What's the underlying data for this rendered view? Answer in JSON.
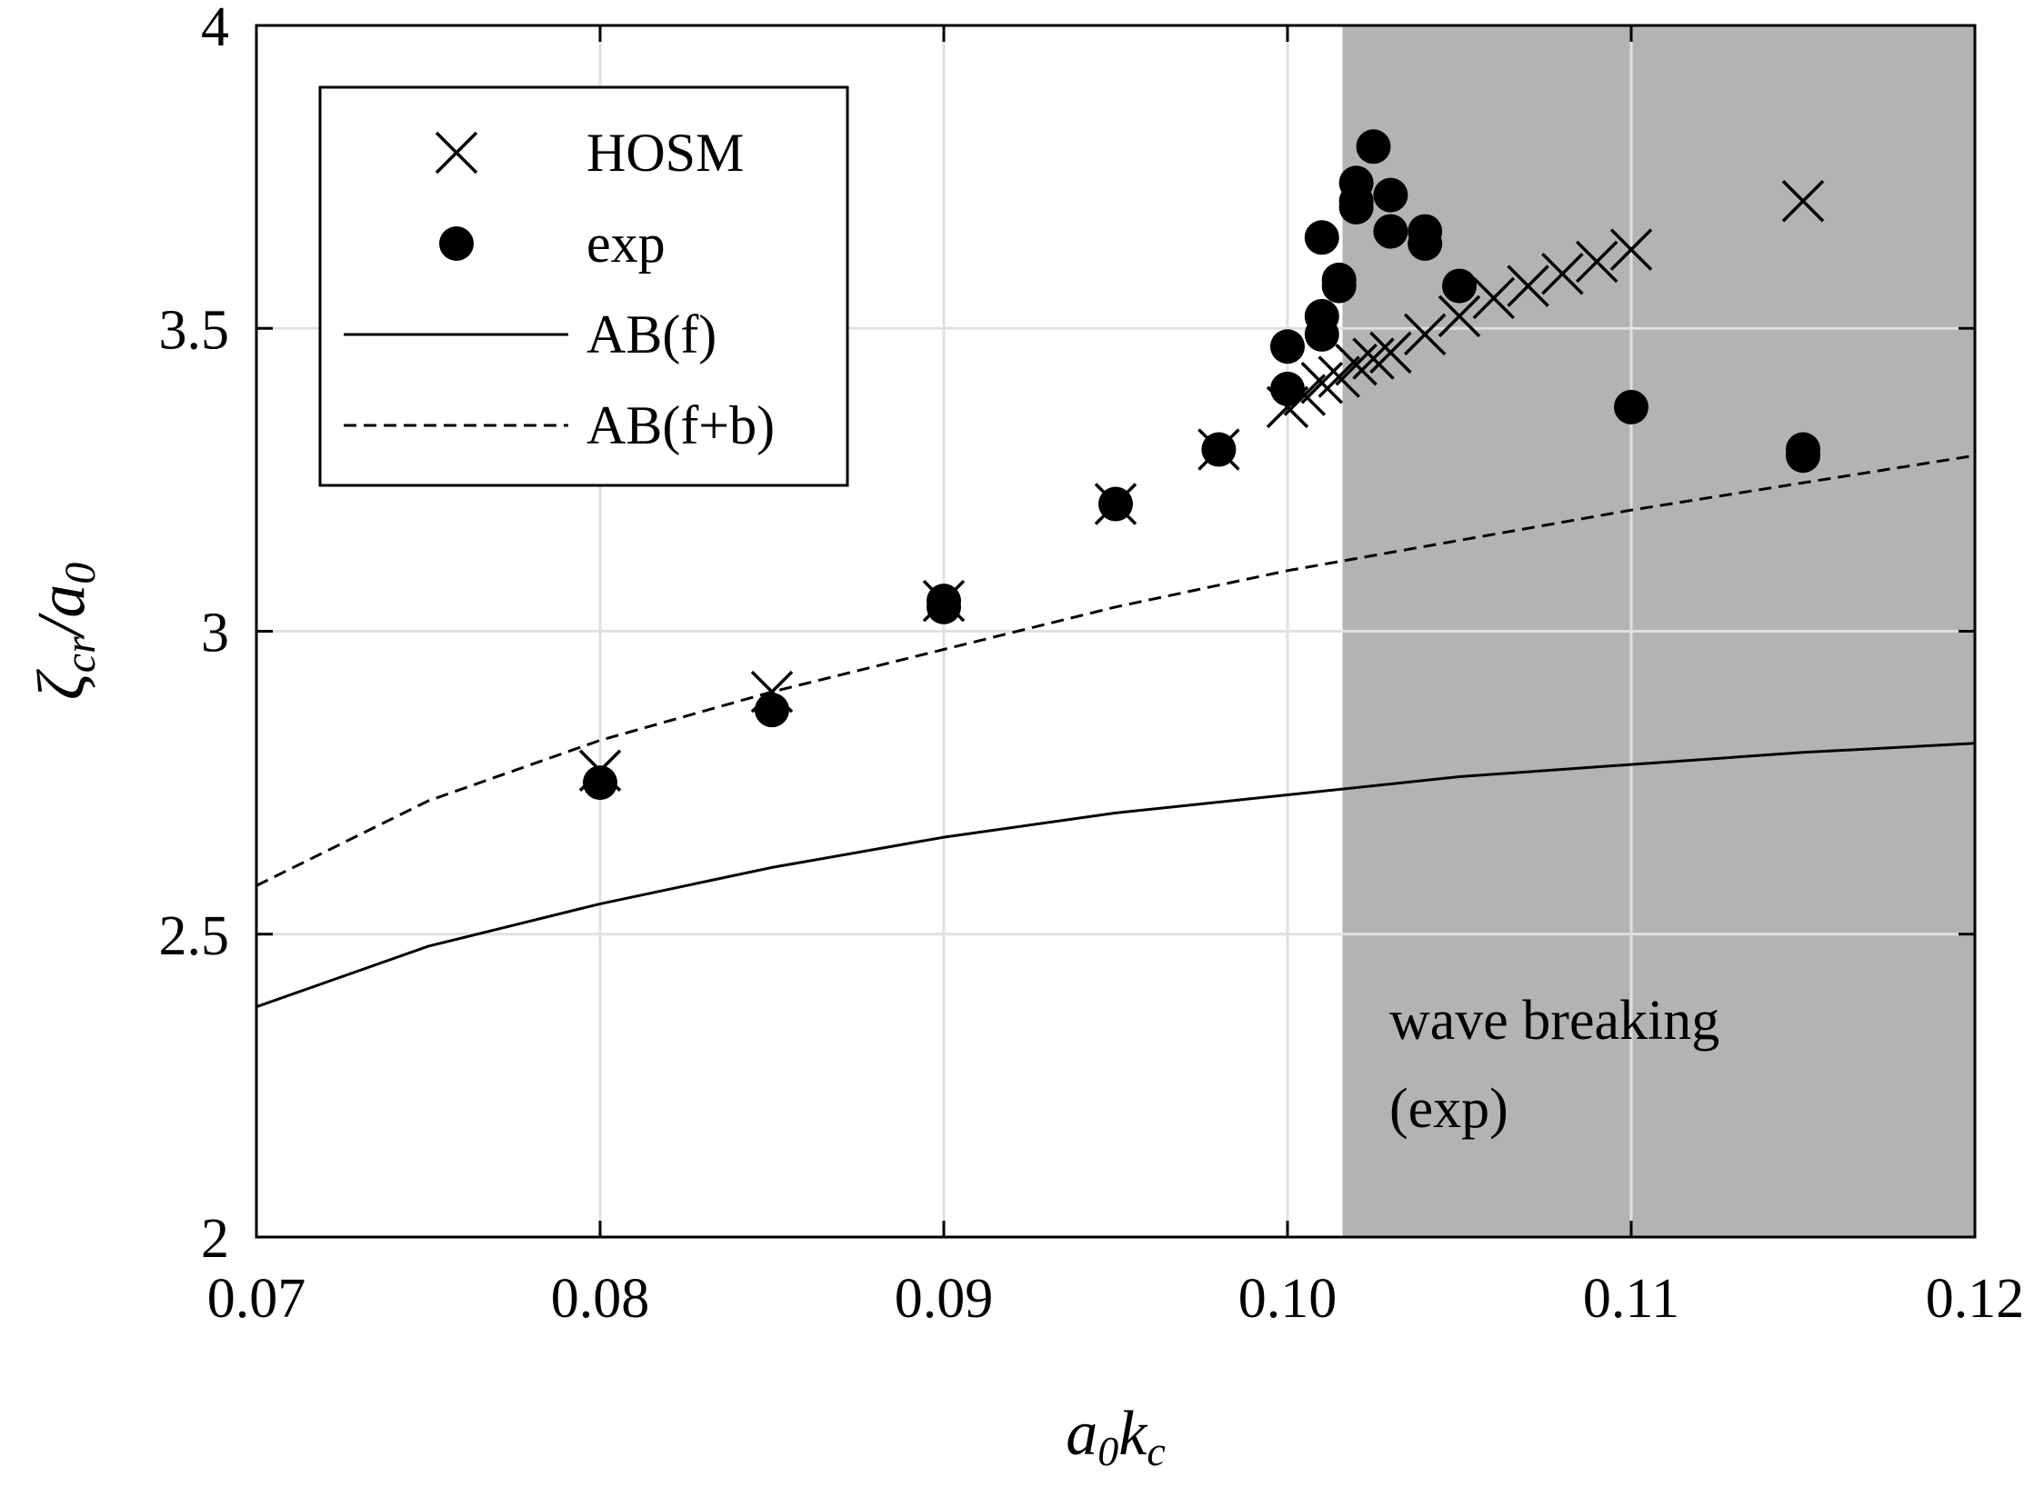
{
  "chart_data": {
    "type": "scatter",
    "xlabel": {
      "base": "a",
      "sub1": "0",
      "mid": "k",
      "sub2": "c"
    },
    "ylabel": {
      "base": "ζ",
      "sub1": "cr",
      "mid": "/a",
      "sub2": "0"
    },
    "xlim": [
      0.07,
      0.12
    ],
    "ylim": [
      2,
      4
    ],
    "xticks": [
      0.07,
      0.08,
      0.09,
      0.1,
      0.11,
      0.12
    ],
    "xtick_labels": [
      "0.07",
      "0.08",
      "0.09",
      "0.10",
      "0.11",
      "0.12"
    ],
    "yticks": [
      2,
      2.5,
      3,
      3.5,
      4
    ],
    "ytick_labels": [
      "2",
      "2.5",
      "3",
      "3.5",
      "4"
    ],
    "grid": true,
    "shaded_region": {
      "x_start": 0.1016,
      "x_end": 0.12,
      "label_lines": [
        "wave breaking",
        "(exp)"
      ],
      "color": "#b3b3b3"
    },
    "legend": {
      "placement": "top-left",
      "entries": [
        {
          "label": "HOSM",
          "marker": "x"
        },
        {
          "label": "exp",
          "marker": "filled-circle"
        },
        {
          "label": "AB(f)",
          "line": "solid"
        },
        {
          "label": "AB(f+b)",
          "line": "dashed"
        }
      ]
    },
    "series": [
      {
        "name": "HOSM",
        "marker": "x",
        "x": [
          0.08,
          0.085,
          0.09,
          0.095,
          0.098,
          0.1,
          0.1005,
          0.101,
          0.1015,
          0.102,
          0.1025,
          0.103,
          0.104,
          0.105,
          0.106,
          0.107,
          0.108,
          0.109,
          0.11,
          0.115
        ],
        "y": [
          2.77,
          2.9,
          3.05,
          3.21,
          3.3,
          3.37,
          3.39,
          3.41,
          3.42,
          3.44,
          3.45,
          3.46,
          3.49,
          3.52,
          3.55,
          3.57,
          3.59,
          3.61,
          3.63,
          3.71
        ]
      },
      {
        "name": "exp",
        "marker": "filled-circle",
        "x": [
          0.08,
          0.085,
          0.09,
          0.09,
          0.095,
          0.098,
          0.1,
          0.1,
          0.101,
          0.101,
          0.101,
          0.1015,
          0.1015,
          0.102,
          0.102,
          0.102,
          0.1025,
          0.103,
          0.103,
          0.104,
          0.104,
          0.105,
          0.11,
          0.115,
          0.115
        ],
        "y": [
          2.75,
          2.87,
          3.04,
          3.05,
          3.21,
          3.3,
          3.4,
          3.47,
          3.49,
          3.52,
          3.65,
          3.57,
          3.58,
          3.7,
          3.71,
          3.74,
          3.8,
          3.66,
          3.72,
          3.64,
          3.66,
          3.57,
          3.37,
          3.29,
          3.3
        ]
      },
      {
        "name": "AB(f)",
        "line": "solid",
        "x": [
          0.07,
          0.075,
          0.08,
          0.085,
          0.09,
          0.095,
          0.1,
          0.105,
          0.11,
          0.115,
          0.12
        ],
        "y": [
          2.38,
          2.48,
          2.55,
          2.61,
          2.66,
          2.7,
          2.73,
          2.76,
          2.78,
          2.8,
          2.815
        ]
      },
      {
        "name": "AB(f+b)",
        "line": "dashed",
        "x": [
          0.07,
          0.075,
          0.08,
          0.085,
          0.09,
          0.095,
          0.1,
          0.105,
          0.11,
          0.115,
          0.12
        ],
        "y": [
          2.58,
          2.72,
          2.82,
          2.9,
          2.97,
          3.04,
          3.1,
          3.15,
          3.2,
          3.245,
          3.29
        ]
      }
    ]
  }
}
